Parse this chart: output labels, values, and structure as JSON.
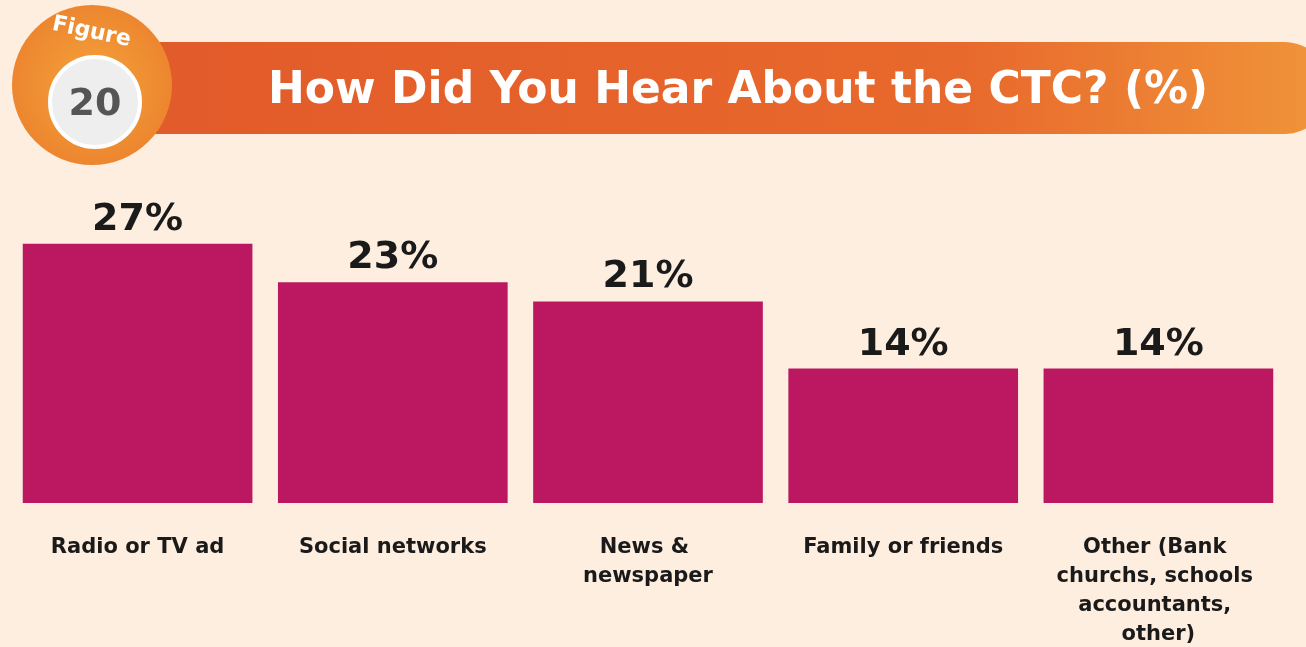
{
  "chart_data": {
    "type": "bar",
    "title": "How Did You Hear About the CTC? (%)",
    "annotations": [
      "Figure",
      "20"
    ],
    "categories": [
      "Radio or TV ad",
      "Social networks",
      "News & newspaper",
      "Family or friends",
      "Other (Bank churchs, schools accountants, other)"
    ],
    "values": [
      27,
      23,
      21,
      14,
      14
    ],
    "value_labels": [
      "27%",
      "23%",
      "21%",
      "14%",
      "14%"
    ],
    "color": "#bc1862"
  }
}
